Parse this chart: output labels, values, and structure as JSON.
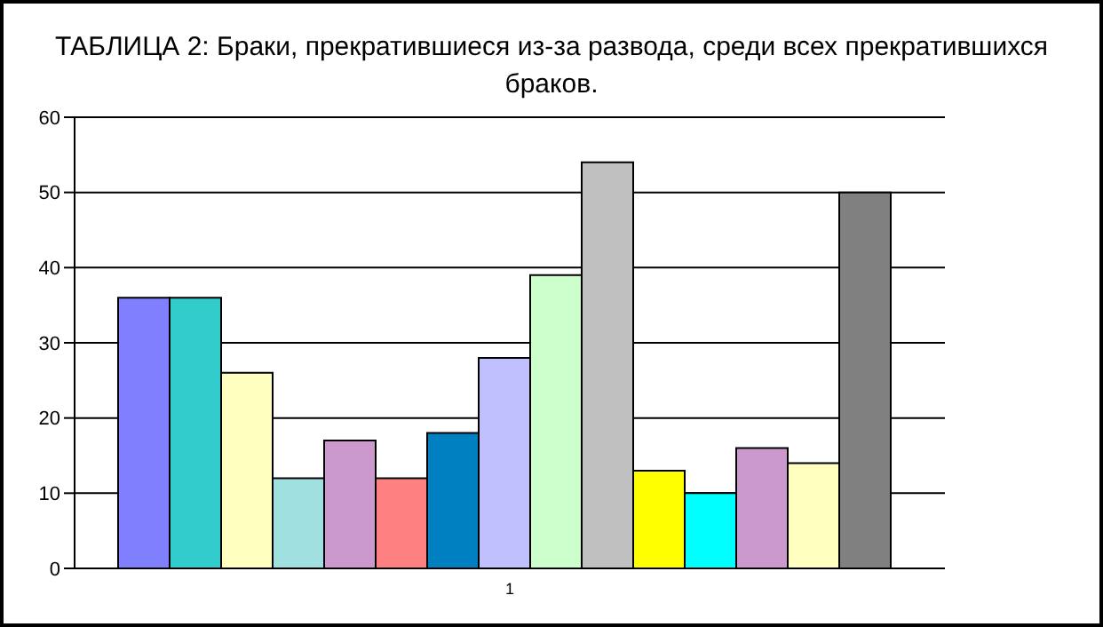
{
  "chart_data": {
    "type": "bar",
    "title": "ТАБЛИЦА 2: Браки, прекратившиеся из-за развода, среди всех прекратившихся браков.",
    "categories": [
      "1"
    ],
    "series": [
      {
        "color": "#8080ff",
        "values": [
          36
        ]
      },
      {
        "color": "#33cccc",
        "values": [
          36
        ]
      },
      {
        "color": "#ffffc0",
        "values": [
          26
        ]
      },
      {
        "color": "#a0e0e0",
        "values": [
          12
        ]
      },
      {
        "color": "#cc99cc",
        "values": [
          17
        ]
      },
      {
        "color": "#ff8080",
        "values": [
          12
        ]
      },
      {
        "color": "#0080c0",
        "values": [
          18
        ]
      },
      {
        "color": "#c0c0ff",
        "values": [
          28
        ]
      },
      {
        "color": "#ccffcc",
        "values": [
          39
        ]
      },
      {
        "color": "#c0c0c0",
        "values": [
          54
        ]
      },
      {
        "color": "#ffff00",
        "values": [
          13
        ]
      },
      {
        "color": "#00ffff",
        "values": [
          10
        ]
      },
      {
        "color": "#cc99cc",
        "values": [
          16
        ]
      },
      {
        "color": "#ffffc0",
        "values": [
          14
        ]
      },
      {
        "color": "#808080",
        "values": [
          50
        ]
      }
    ],
    "ylim": [
      0,
      60
    ],
    "yticks": [
      0,
      10,
      20,
      30,
      40,
      50,
      60
    ],
    "grid": "y",
    "legend": false
  }
}
